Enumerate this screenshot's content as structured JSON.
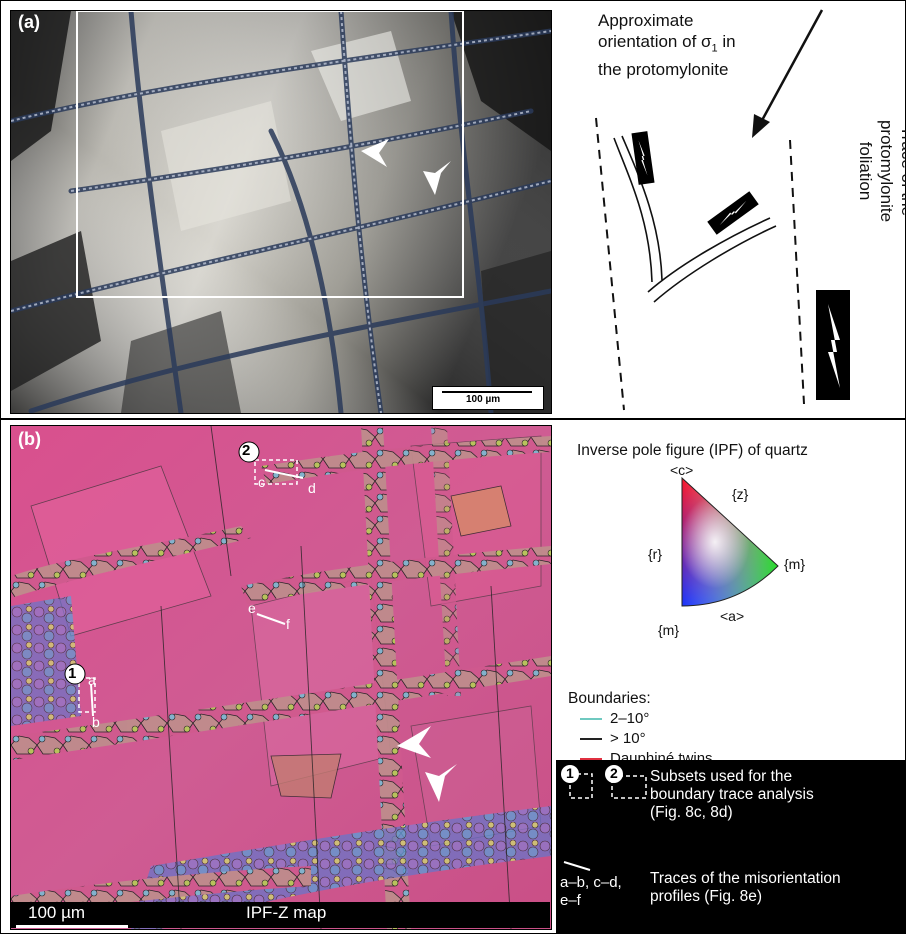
{
  "panel_a": {
    "label": "(a)",
    "scalebar": "100 µm",
    "orientation_label_line1": "Approximate",
    "orientation_label_line2": "orientation of σ",
    "orientation_label_sub": "1",
    "orientation_label_line2_end": " in",
    "orientation_label_line3": "the protomylonite",
    "trace_label_line1": "Trace of the",
    "trace_label_line2": "protomylonite",
    "trace_label_line3": "foliation"
  },
  "panel_b": {
    "label": "(b)",
    "scalebar": "100 µm",
    "map_title": "IPF-Z map",
    "subset_1": "1",
    "subset_2": "2",
    "profile_a": "a",
    "profile_b": "b",
    "profile_c": "c",
    "profile_d": "d",
    "profile_e": "e",
    "profile_f": "f"
  },
  "ipf_legend": {
    "title": "Inverse pole figure (IPF) of quartz",
    "c": "<c>",
    "z": "{z}",
    "m_right": "{m}",
    "r": "{r}",
    "a": "<a>",
    "m_bottom": "{m}"
  },
  "boundaries": {
    "title": "Boundaries:",
    "items": [
      {
        "label": "2–10°",
        "color": "#6fc9c0"
      },
      {
        "label": "> 10°",
        "color": "#222222"
      },
      {
        "label": "Dauphiné twins",
        "color": "#e03040"
      }
    ]
  },
  "legend_box": {
    "subsets_line1": "Subsets used for the",
    "subsets_line2": "boundary trace analysis",
    "subsets_line3": "(Fig. 8c, 8d)",
    "profiles_keys_line1": "a–b, c–d,",
    "profiles_keys_line2": "e–f",
    "profiles_line1": "Traces of the misorientation",
    "profiles_line2": "profiles (Fig. 8e)",
    "num1": "1",
    "num2": "2"
  }
}
